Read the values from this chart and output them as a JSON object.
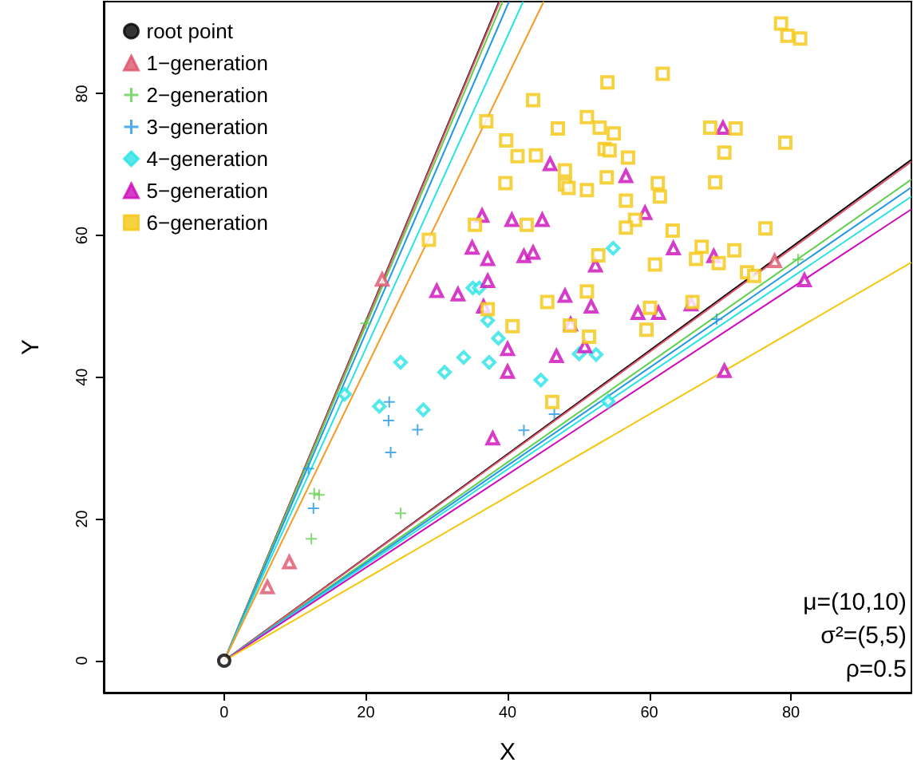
{
  "chart_data": {
    "type": "scatter",
    "xlabel": "X",
    "ylabel": "Y",
    "xlim": [
      -17,
      97
    ],
    "ylim": [
      -4.5,
      93
    ],
    "xticks": [
      0,
      20,
      40,
      60,
      80
    ],
    "yticks": [
      0,
      20,
      40,
      60,
      80
    ],
    "grid": false,
    "legend": "top left",
    "annotations": [
      "μ=(10,10)",
      "σ²=(5,5)",
      "ρ=0.5"
    ],
    "series": [
      {
        "name": "root point",
        "color": "#000000",
        "marker": "circle",
        "x": [
          0
        ],
        "values": [
          0
        ]
      },
      {
        "name": "1−generation",
        "color": "#df536b",
        "marker": "triangle",
        "x": [
          6.1,
          9.2,
          22.3,
          77.7
        ],
        "values": [
          10.4,
          13.9,
          53.8,
          56.4
        ]
      },
      {
        "name": "2−generation",
        "color": "#61d04f",
        "marker": "cross",
        "x": [
          12.7,
          13.4,
          12.3,
          24.9,
          20.0,
          81.0
        ],
        "values": [
          23.6,
          23.4,
          17.2,
          20.8,
          47.6,
          56.6
        ]
      },
      {
        "name": "3−generation",
        "color": "#2297e6",
        "marker": "cross",
        "x": [
          23.3,
          23.2,
          27.3,
          23.5,
          12.6,
          11.9,
          42.3,
          46.6,
          69.5
        ],
        "values": [
          36.5,
          33.9,
          32.6,
          29.4,
          21.5,
          27.1,
          32.5,
          34.8,
          48.2
        ]
      },
      {
        "name": "4−generation",
        "color": "#28e2e5",
        "marker": "diamond",
        "x": [
          24.9,
          31.1,
          33.8,
          37.4,
          38.7,
          37.2,
          35.1,
          36.0,
          44.7,
          21.9,
          28.1,
          17.0,
          54.9,
          50.1,
          52.5,
          54.2
        ],
        "values": [
          42.1,
          40.7,
          42.8,
          42.1,
          45.5,
          48.0,
          52.6,
          52.6,
          39.6,
          35.9,
          35.4,
          37.6,
          58.2,
          43.3,
          43.2,
          36.6
        ]
      },
      {
        "name": "5−generation",
        "color": "#cd0bbc",
        "marker": "triangle",
        "x": [
          46.0,
          56.7,
          36.4,
          40.6,
          44.9,
          59.4,
          63.4,
          35.0,
          37.2,
          42.3,
          43.6,
          52.4,
          37.2,
          30.0,
          33.0,
          36.6,
          48.1,
          51.8,
          58.4,
          61.3,
          70.4,
          69.1,
          65.9,
          48.9,
          50.9,
          46.9,
          40.0,
          40.0,
          37.9,
          81.9,
          70.6
        ],
        "values": [
          70.1,
          68.4,
          62.8,
          62.2,
          62.2,
          63.2,
          58.2,
          58.3,
          56.7,
          57.1,
          57.6,
          55.8,
          53.6,
          52.2,
          51.7,
          50.0,
          51.5,
          50.0,
          49.1,
          49.1,
          75.2,
          57.1,
          50.3,
          47.5,
          44.4,
          43.0,
          44.0,
          40.8,
          31.4,
          53.7,
          40.9
        ]
      },
      {
        "name": "6−generation",
        "color": "#f5c710",
        "marker": "square",
        "x": [
          54.1,
          61.9,
          43.6,
          37.0,
          51.2,
          53.0,
          55.0,
          47.1,
          39.8,
          41.4,
          44.0,
          53.7,
          54.4,
          57.0,
          48.1,
          54.0,
          39.7,
          48.1,
          48.6,
          51.2,
          61.2,
          61.5,
          56.7,
          58.0,
          56.7,
          63.3,
          35.4,
          42.7,
          52.8,
          60.8,
          51.2,
          45.6,
          37.2,
          60.1,
          28.9,
          78.6,
          79.5,
          81.3,
          68.6,
          72.2,
          79.2,
          70.6,
          69.3,
          76.4,
          67.4,
          72.0,
          66.6,
          69.8,
          73.8,
          66.1,
          74.8,
          48.8,
          59.6,
          51.5,
          46.3,
          40.7
        ],
        "values": [
          81.6,
          82.8,
          79.1,
          76.1,
          76.7,
          75.2,
          74.4,
          75.1,
          73.4,
          71.2,
          71.3,
          72.2,
          72.0,
          71.0,
          69.2,
          68.2,
          67.4,
          67.2,
          66.7,
          66.4,
          67.4,
          65.5,
          64.9,
          62.2,
          61.1,
          60.7,
          61.5,
          61.5,
          57.2,
          55.9,
          52.1,
          50.6,
          49.6,
          49.8,
          59.4,
          89.9,
          88.2,
          87.8,
          75.2,
          75.1,
          73.1,
          71.7,
          67.5,
          61.0,
          58.4,
          57.9,
          56.7,
          56.1,
          54.8,
          50.6,
          54.3,
          47.3,
          46.7,
          45.7,
          36.5,
          47.2
        ]
      },
      {
        "type": "line",
        "color": "#000000",
        "marker": "none",
        "x": [
          0,
          38.8
        ],
        "values": [
          0,
          93
        ]
      },
      {
        "type": "line",
        "color": "#000000",
        "marker": "none",
        "x": [
          0,
          97
        ],
        "values": [
          0,
          70.7
        ]
      },
      {
        "type": "line",
        "color": "#df536b",
        "marker": "none",
        "x": [
          0,
          38.9
        ],
        "values": [
          0,
          93
        ]
      },
      {
        "type": "line",
        "color": "#df536b",
        "marker": "none",
        "x": [
          0,
          97
        ],
        "values": [
          0,
          70.4
        ]
      },
      {
        "type": "line",
        "color": "#61d04f",
        "marker": "none",
        "x": [
          0,
          39.3
        ],
        "values": [
          0,
          93
        ]
      },
      {
        "type": "line",
        "color": "#61d04f",
        "marker": "none",
        "x": [
          0,
          97
        ],
        "values": [
          0,
          67.9
        ]
      },
      {
        "type": "line",
        "color": "#2297e6",
        "marker": "none",
        "x": [
          0,
          40.2
        ],
        "values": [
          0,
          93
        ]
      },
      {
        "type": "line",
        "color": "#2297e6",
        "marker": "none",
        "x": [
          0,
          97
        ],
        "values": [
          0,
          66.8
        ]
      },
      {
        "type": "line",
        "color": "#28e2e5",
        "marker": "none",
        "x": [
          0,
          42.2
        ],
        "values": [
          0,
          93
        ]
      },
      {
        "type": "line",
        "color": "#28e2e5",
        "marker": "none",
        "x": [
          0,
          97
        ],
        "values": [
          0,
          65.5
        ]
      },
      {
        "type": "line",
        "color": "#cd0bbc",
        "marker": "none",
        "x": [
          0,
          97
        ],
        "values": [
          0,
          63.7
        ]
      },
      {
        "type": "line",
        "color": "#f59a23",
        "marker": "none",
        "x": [
          0,
          45.1
        ],
        "values": [
          0,
          93
        ]
      },
      {
        "type": "line",
        "color": "#f5c710",
        "marker": "none",
        "x": [
          0,
          97
        ],
        "values": [
          0,
          56.2
        ]
      }
    ]
  }
}
